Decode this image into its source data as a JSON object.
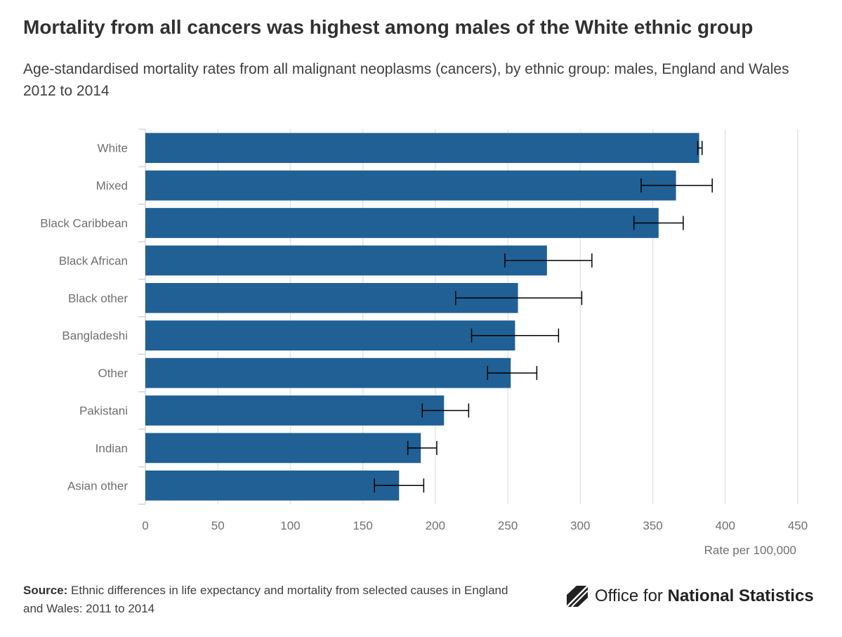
{
  "title": "Mortality from all cancers was highest among males of the White ethnic group",
  "subtitle": "Age-standardised mortality rates from all malignant neoplasms (cancers), by ethnic group: males, England and Wales 2012 to 2014",
  "source": {
    "label": "Source:",
    "text": "Ethnic differences in life expectancy and mortality from selected causes in England and Wales: 2011 to 2014"
  },
  "logo": {
    "text_regular": "Office for",
    "text_bold": "National Statistics"
  },
  "colors": {
    "bar": "#206095",
    "error_bar": "#000000",
    "grid": "#e6e6e6",
    "axis": "#ccd6eb"
  },
  "chart_data": {
    "type": "bar",
    "orientation": "horizontal",
    "title": "Mortality from all cancers was highest among males of the White ethnic group",
    "categories": [
      "White",
      "Mixed",
      "Black Caribbean",
      "Black African",
      "Black other",
      "Bangladeshi",
      "Other",
      "Pakistani",
      "Indian",
      "Asian other"
    ],
    "values": [
      382,
      366,
      354,
      277,
      257,
      255,
      252,
      206,
      190,
      175
    ],
    "error_low": [
      381,
      342,
      337,
      248,
      214,
      225,
      236,
      191,
      181,
      158
    ],
    "error_high": [
      384,
      391,
      371,
      308,
      301,
      285,
      270,
      223,
      201,
      192
    ],
    "xlabel": "Rate per 100,000",
    "ylabel": "",
    "xlim": [
      0,
      450
    ],
    "xticks": [
      0,
      50,
      100,
      150,
      200,
      250,
      300,
      350,
      400,
      450
    ],
    "grid": true,
    "legend": "none"
  }
}
